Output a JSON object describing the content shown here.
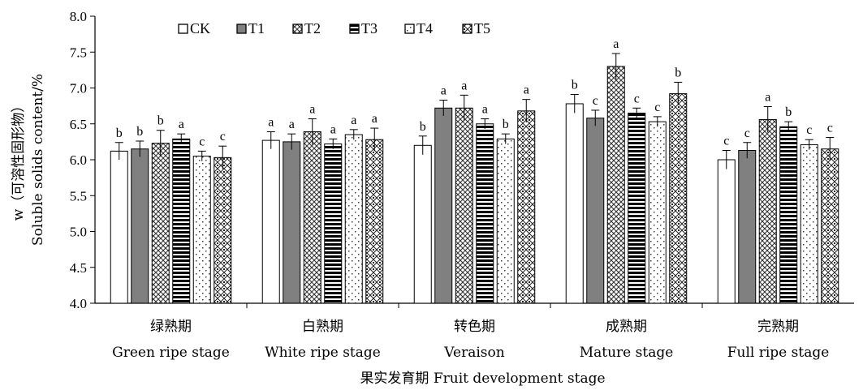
{
  "chart_data": {
    "type": "bar",
    "title": "",
    "ylabel_cn": "w（可溶性固形物）",
    "ylabel_en": "Soluble solids content/%",
    "xlabel": "果实发育期 Fruit development stage",
    "ylim": [
      4.0,
      8.0
    ],
    "yticks": [
      "4.0",
      "4.5",
      "5.0",
      "5.5",
      "6.0",
      "6.5",
      "7.0",
      "7.5",
      "8.0"
    ],
    "legend_position": "top-left",
    "grid": false,
    "categories": [
      {
        "cn": "绿熟期",
        "en": "Green ripe stage"
      },
      {
        "cn": "白熟期",
        "en": "White ripe stage"
      },
      {
        "cn": "转色期",
        "en": "Veraison"
      },
      {
        "cn": "成熟期",
        "en": "Mature stage"
      },
      {
        "cn": "完熟期",
        "en": "Full ripe stage"
      }
    ],
    "series": [
      {
        "name": "CK",
        "pattern": "white",
        "values": [
          6.12,
          6.27,
          6.2,
          6.78,
          6.0
        ],
        "errors": [
          0.12,
          0.12,
          0.13,
          0.13,
          0.13
        ],
        "letters": [
          "b",
          "a",
          "b",
          "b",
          "c"
        ]
      },
      {
        "name": "T1",
        "pattern": "gray",
        "values": [
          6.15,
          6.25,
          6.72,
          6.58,
          6.13
        ],
        "errors": [
          0.11,
          0.11,
          0.11,
          0.11,
          0.11
        ],
        "letters": [
          "b",
          "a",
          "a",
          "c",
          "c"
        ]
      },
      {
        "name": "T2",
        "pattern": "cross",
        "values": [
          6.23,
          6.39,
          6.72,
          7.3,
          6.56
        ],
        "errors": [
          0.18,
          0.18,
          0.18,
          0.18,
          0.18
        ],
        "letters": [
          "b",
          "a",
          "a",
          "a",
          "a"
        ]
      },
      {
        "name": "T3",
        "pattern": "hstripes",
        "values": [
          6.29,
          6.22,
          6.5,
          6.65,
          6.46
        ],
        "errors": [
          0.07,
          0.07,
          0.07,
          0.07,
          0.07
        ],
        "letters": [
          "a",
          "a",
          "a",
          "c",
          "b"
        ]
      },
      {
        "name": "T4",
        "pattern": "dots",
        "values": [
          6.05,
          6.35,
          6.29,
          6.53,
          6.21
        ],
        "errors": [
          0.07,
          0.07,
          0.07,
          0.07,
          0.07
        ],
        "letters": [
          "c",
          "a",
          "b",
          "c",
          "c"
        ]
      },
      {
        "name": "T5",
        "pattern": "diamond",
        "values": [
          6.03,
          6.28,
          6.68,
          6.92,
          6.15
        ],
        "errors": [
          0.16,
          0.16,
          0.16,
          0.16,
          0.16
        ],
        "letters": [
          "c",
          "a",
          "a",
          "b",
          "c"
        ]
      }
    ]
  }
}
